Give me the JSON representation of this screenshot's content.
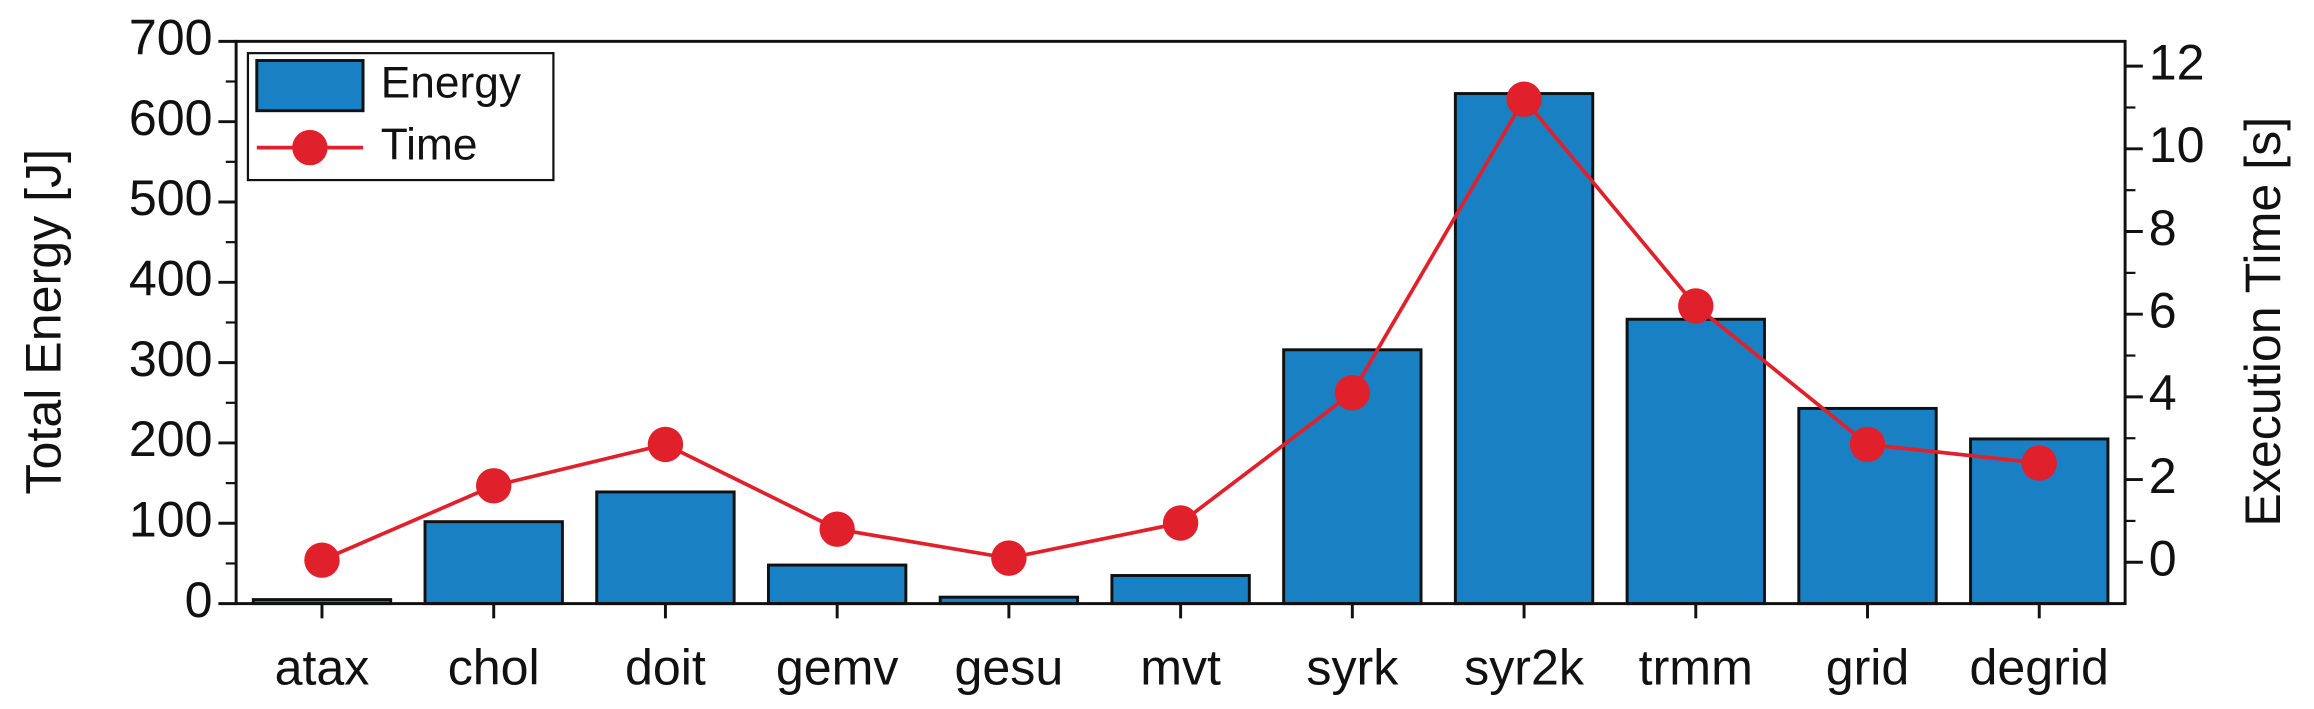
{
  "chart_data": {
    "type": "bar",
    "categories": [
      "atax",
      "chol",
      "doit",
      "gemv",
      "gesu",
      "mvt",
      "syrk",
      "syr2k",
      "trmm",
      "grid",
      "degrid"
    ],
    "ylabel": "Total Energy [J]",
    "y2label": "Execution Time [s]",
    "ylim": [
      0,
      700
    ],
    "yticks": [
      0,
      100,
      200,
      300,
      400,
      500,
      600,
      700
    ],
    "y2lim": [
      -1,
      12.6
    ],
    "y2ticks": [
      0,
      2,
      4,
      6,
      8,
      10,
      12
    ],
    "legend": "upper-left",
    "series": [
      {
        "name": "Energy",
        "type": "bar",
        "color": "#1a80c4",
        "values": [
          5,
          102,
          139,
          48,
          8,
          35,
          316,
          635,
          354,
          243,
          205
        ]
      },
      {
        "name": "Time",
        "type": "line",
        "axis": "y2",
        "color": "#e0202a",
        "values": [
          0.05,
          1.85,
          2.85,
          0.8,
          0.1,
          0.95,
          4.1,
          11.2,
          6.2,
          2.85,
          2.4
        ]
      }
    ]
  }
}
